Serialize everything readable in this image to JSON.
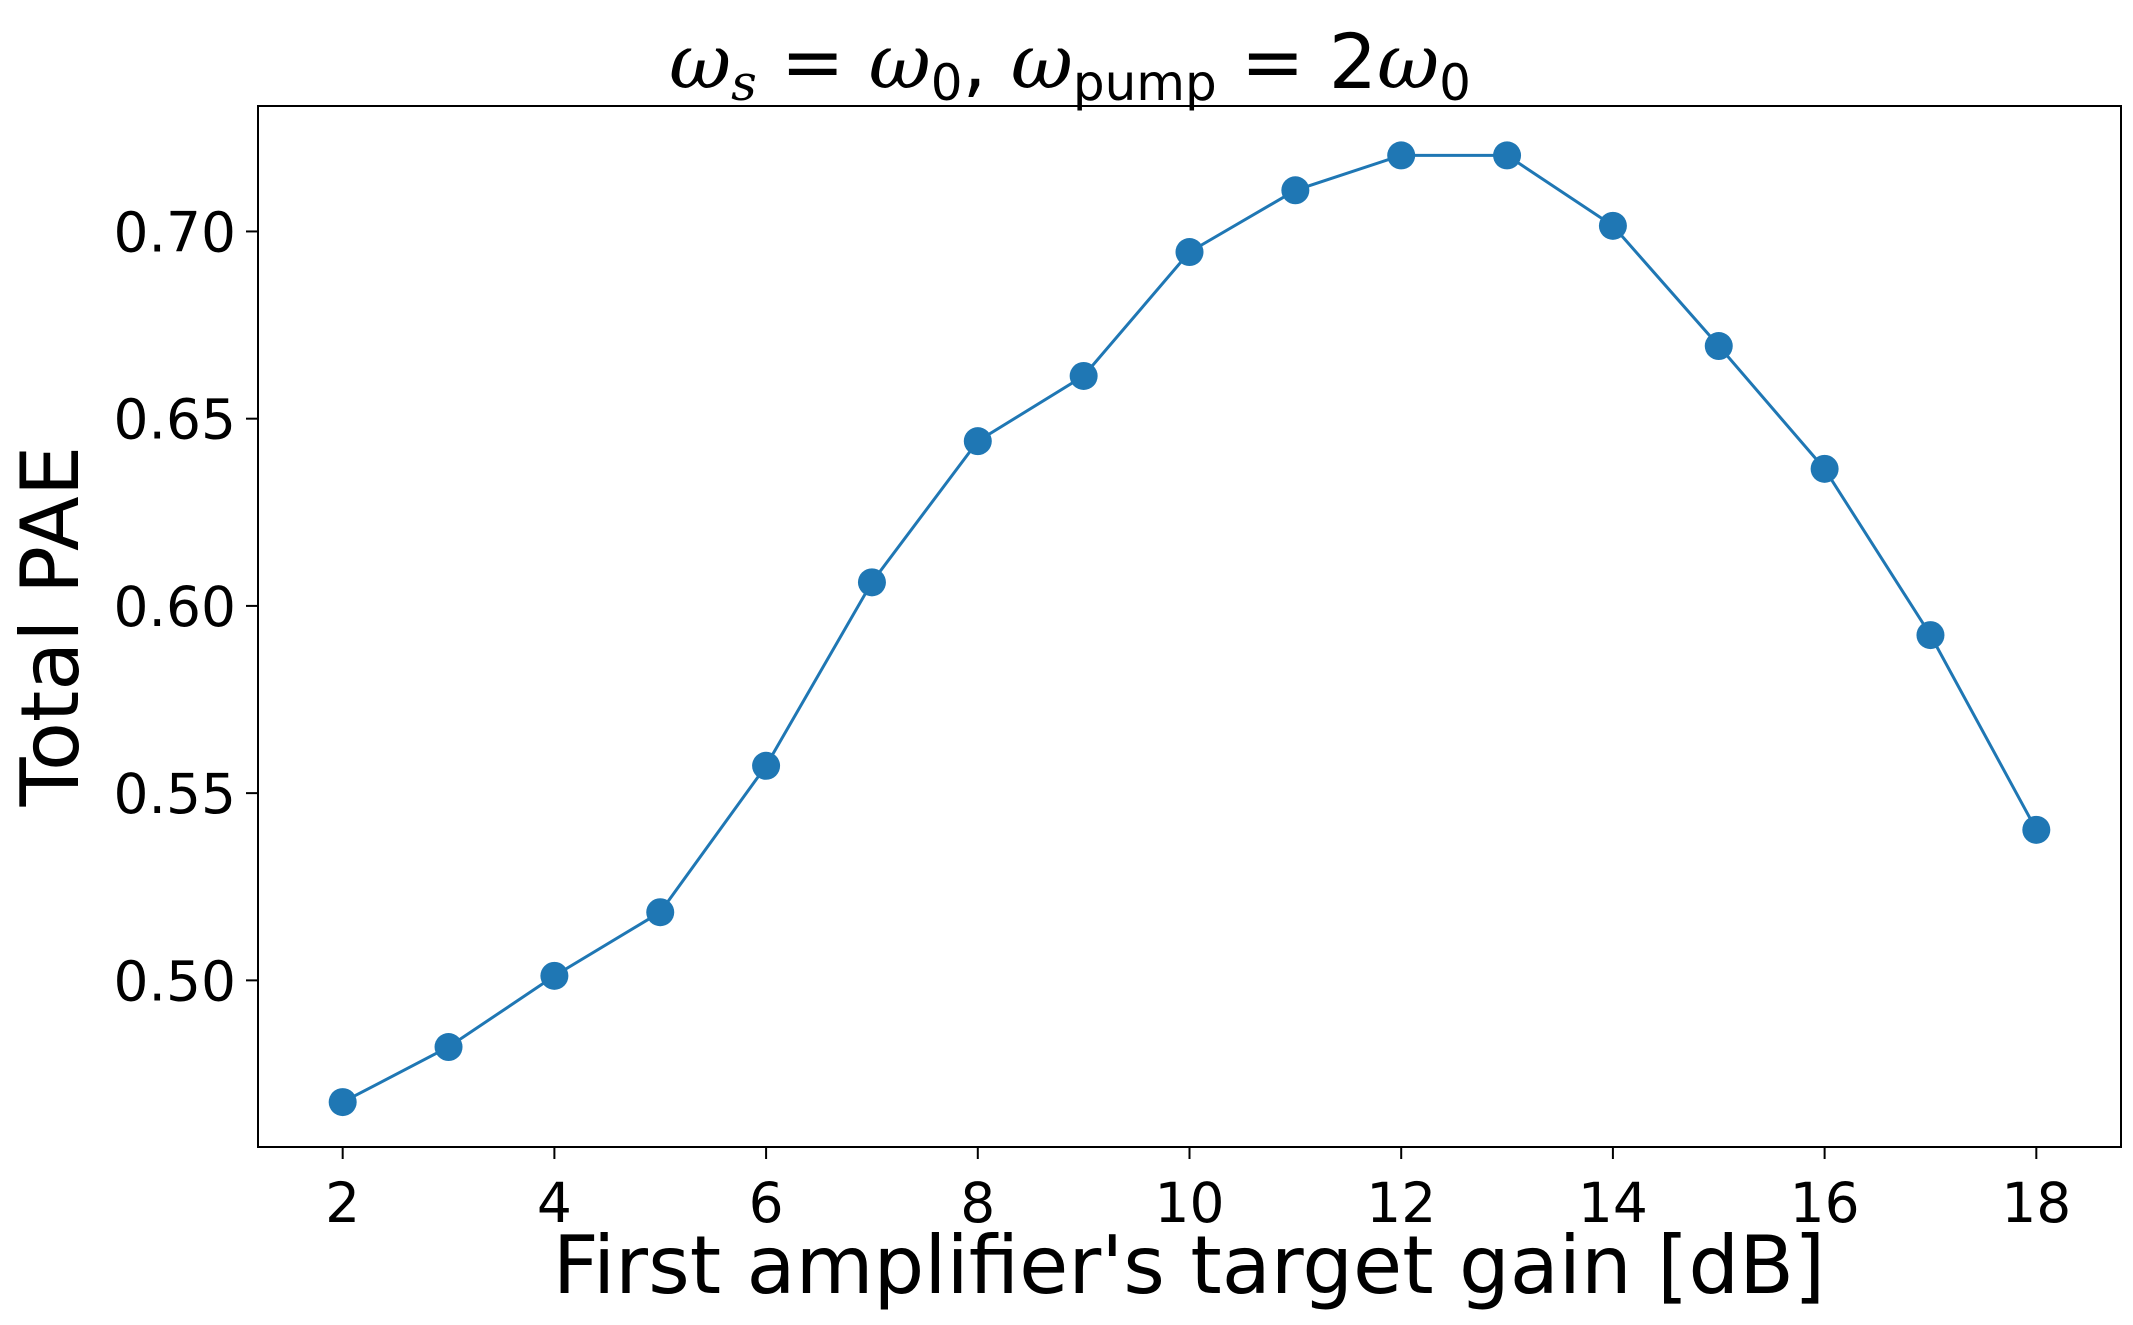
{
  "chart_data": {
    "type": "line",
    "title": {
      "omega": "ω",
      "s_sub": "s",
      "eq": " = ",
      "zero_sub": "0",
      "comma": ", ",
      "pump_sub": "pump",
      "eq2": " = 2"
    },
    "xlabel": "First amplifier's target gain [dB]",
    "ylabel": "Total PAE",
    "xlim": [
      1.2,
      18.8
    ],
    "ylim": [
      0.4555,
      0.7335
    ],
    "xticks": [
      2,
      4,
      6,
      8,
      10,
      12,
      14,
      16,
      18
    ],
    "yticks": [
      0.5,
      0.55,
      0.6,
      0.65,
      0.7
    ],
    "ytick_labels": [
      "0.50",
      "0.55",
      "0.60",
      "0.65",
      "0.70"
    ],
    "grid": false,
    "series": [
      {
        "color": "#1f77b4",
        "marker": "circle",
        "x": [
          2,
          3,
          4,
          5,
          6,
          7,
          8,
          9,
          10,
          11,
          12,
          13,
          14,
          15,
          16,
          17,
          18
        ],
        "y": [
          0.4675,
          0.4822,
          0.5012,
          0.5182,
          0.5573,
          0.6063,
          0.644,
          0.6614,
          0.6945,
          0.711,
          0.7203,
          0.7203,
          0.7015,
          0.6694,
          0.6366,
          0.5922,
          0.5402
        ]
      }
    ]
  }
}
